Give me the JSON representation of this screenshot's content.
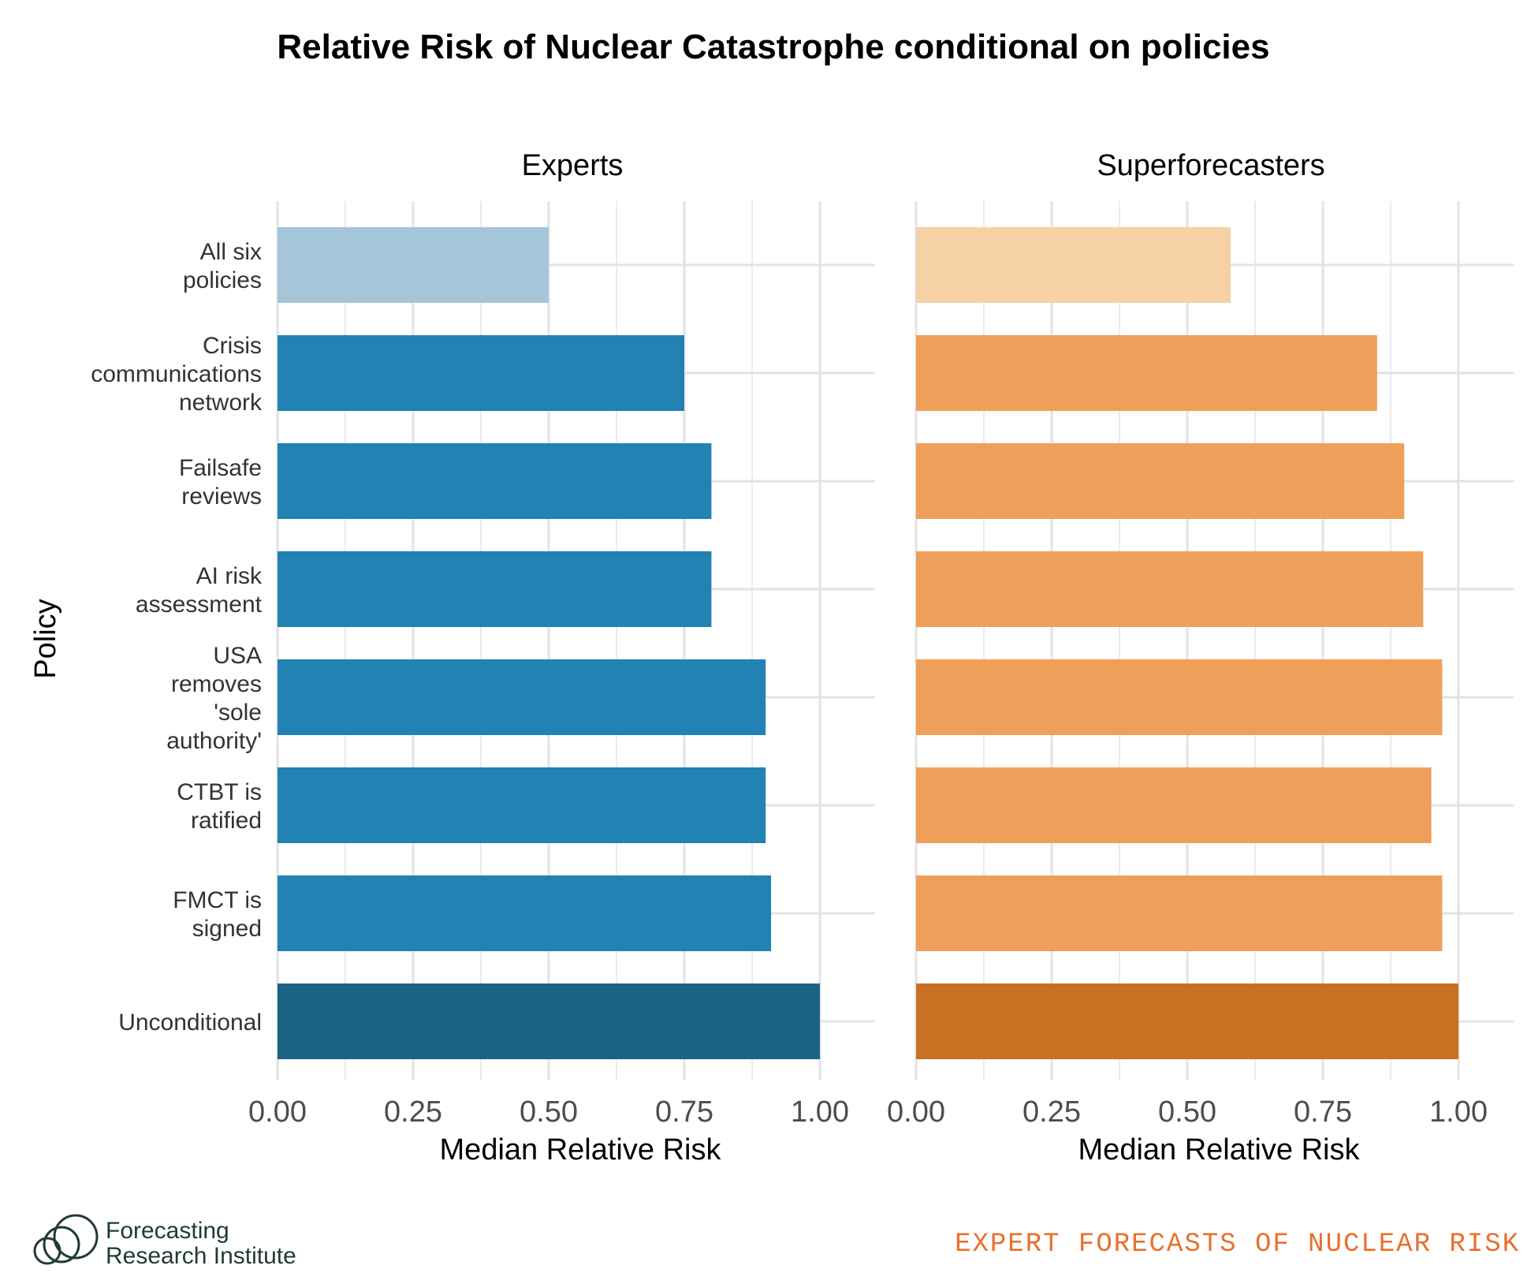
{
  "chart_data": {
    "type": "bar",
    "orientation": "horizontal",
    "title": "Relative Risk of Nuclear Catastrophe conditional on policies",
    "ylabel": "Policy",
    "categories": [
      "All six policies",
      "Crisis communications network",
      "Failsafe reviews",
      "AI risk assessment",
      "USA removes 'sole authority'",
      "CTBT is ratified",
      "FMCT is signed",
      "Unconditional"
    ],
    "category_label_lines": [
      [
        "All six",
        "policies"
      ],
      [
        "Crisis",
        "communications",
        "network"
      ],
      [
        "Failsafe",
        "reviews"
      ],
      [
        "AI risk",
        "assessment"
      ],
      [
        "USA",
        "removes",
        "'sole",
        "authority'"
      ],
      [
        "CTBT is",
        "ratified"
      ],
      [
        "FMCT is",
        "signed"
      ],
      [
        "Unconditional"
      ]
    ],
    "facets": [
      {
        "name": "Experts",
        "xlabel": "Median Relative Risk",
        "values": [
          0.5,
          0.75,
          0.8,
          0.8,
          0.9,
          0.9,
          0.91,
          1.0
        ],
        "colors": [
          "#a5c5d8",
          "#2182b3",
          "#2182b3",
          "#2182b3",
          "#2182b3",
          "#2182b3",
          "#2182b3",
          "#1a6384"
        ]
      },
      {
        "name": "Superforecasters",
        "xlabel": "Median Relative Risk",
        "values": [
          0.58,
          0.85,
          0.9,
          0.935,
          0.97,
          0.95,
          0.97,
          1.0
        ],
        "colors": [
          "#f5d1a5",
          "#eea05a",
          "#eea05a",
          "#eea05a",
          "#eea05a",
          "#eea05a",
          "#eea05a",
          "#c87122"
        ]
      }
    ],
    "xlim": [
      0,
      1.0
    ],
    "xticks": [
      0,
      0.25,
      0.5,
      0.75,
      1.0
    ],
    "xtick_labels": [
      "0.00",
      "0.25",
      "0.50",
      "0.75",
      "1.00"
    ],
    "grid": true,
    "legend": "none"
  },
  "footer": {
    "logo_line1": "Forecasting",
    "logo_line2": "Research Institute",
    "tagline": "EXPERT FORECASTS OF NUCLEAR RISK"
  }
}
